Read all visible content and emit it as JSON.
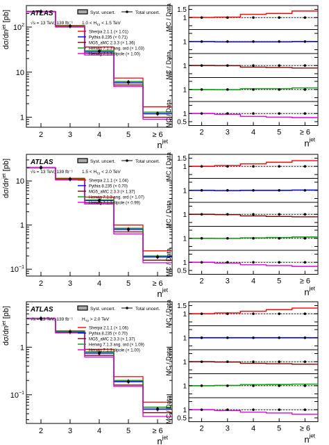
{
  "figure": {
    "atlas_label": "ATLAS",
    "legend": {
      "syst": "Syst. uncert.",
      "total": "Total uncert.",
      "sherpa": "Sherpa 2.1.1",
      "pythia": "Pythia 8.235",
      "mg5": "MG5_aMC 2.3.3",
      "herwig_ang": "Herwig 7.1.3 ang. ord",
      "herwig_dip": "Herwig 7.1.3 dipole"
    },
    "colors": {
      "sherpa": "#ff0000",
      "pythia": "#0000ff",
      "mg5": "#7a0000",
      "herwig_ang": "#00a000",
      "herwig_dip": "#e000e0",
      "data": "#000000",
      "band": "#aaaaaa"
    },
    "xlabel": "n",
    "xlabel_sup": "jet",
    "ylabel": "dσ/dn",
    "ylabel_sup": "jet",
    "ylabel_unit": " [pb]",
    "ratio_ylabel": "MC / Data",
    "ratio_ticks": [
      "1.5",
      "1",
      "0.5"
    ],
    "energy_label": "√s = 13 TeV, 139 fb⁻¹"
  },
  "chart_data": [
    {
      "type": "histogram",
      "region": "1.0 < H_T2 < 1.5 TeV",
      "region_prefix": "1.0 < H",
      "region_sub": "T2",
      "region_suffix": " < 1.5 TeV",
      "categories": [
        "2",
        "3",
        "4",
        "5",
        "≥ 6"
      ],
      "log_y": true,
      "ylim": [
        0.6,
        300
      ],
      "y_ticks": [
        {
          "v": 100,
          "label": "10",
          "sup": "2"
        },
        {
          "v": 10,
          "label": "10",
          "sup": ""
        },
        {
          "v": 1,
          "label": "1",
          "sup": ""
        }
      ],
      "data": [
        220,
        105,
        29,
        6.0,
        1.2
      ],
      "series": [
        {
          "key": "sherpa",
          "name": "Sherpa 2.1.1",
          "scale": "(× 1.01)",
          "values": [
            222,
            108,
            36,
            7.4,
            1.7
          ],
          "ratio": [
            1.01,
            1.03,
            1.2,
            1.25,
            1.4
          ]
        },
        {
          "key": "pythia",
          "name": "Pythia 8.235",
          "scale": "(× 0.71)",
          "values": [
            220,
            103,
            28,
            5.8,
            1.2
          ],
          "ratio": [
            1.0,
            0.98,
            0.98,
            0.98,
            1.0
          ]
        },
        {
          "key": "mg5",
          "name": "MG5_aMC 2.3.3",
          "scale": "(× 1.36)",
          "values": [
            220,
            104,
            26,
            5.2,
            1.0
          ],
          "ratio": [
            1.0,
            0.99,
            0.9,
            0.88,
            0.85
          ]
        },
        {
          "key": "herwig_ang",
          "name": "Herwig 7.1.3 ang. ord",
          "scale": "(× 1.03)",
          "values": [
            220,
            104,
            30,
            6.2,
            1.3
          ],
          "ratio": [
            1.0,
            0.99,
            1.05,
            1.05,
            1.1
          ]
        },
        {
          "key": "herwig_dip",
          "name": "Herwig 7.1.3 dipole",
          "scale": "(× 1.00)",
          "values": [
            220,
            100,
            24,
            4.8,
            0.9
          ],
          "ratio": [
            1.0,
            0.95,
            0.82,
            0.78,
            0.75
          ]
        }
      ]
    },
    {
      "type": "histogram",
      "region": "1.5 < H_T2 < 2.0 TeV",
      "region_prefix": "1.5 < H",
      "region_sub": "T2",
      "region_suffix": " < 2.0 TeV",
      "categories": [
        "2",
        "3",
        "4",
        "5",
        "≥ 6"
      ],
      "log_y": true,
      "ylim": [
        0.07,
        40
      ],
      "y_ticks": [
        {
          "v": 10,
          "label": "10",
          "sup": ""
        },
        {
          "v": 1,
          "label": "1",
          "sup": ""
        },
        {
          "v": 0.1,
          "label": "10",
          "sup": "−1"
        }
      ],
      "data": [
        20,
        11,
        3.6,
        0.8,
        0.19
      ],
      "series": [
        {
          "key": "sherpa",
          "name": "Sherpa 2.1.1",
          "scale": "(× 1.04)",
          "values": [
            20,
            11.5,
            4.3,
            1.0,
            0.26
          ],
          "ratio": [
            1.0,
            1.05,
            1.15,
            1.25,
            1.35
          ]
        },
        {
          "key": "pythia",
          "name": "Pythia 8.235",
          "scale": "(× 0.70)",
          "values": [
            20,
            11,
            3.6,
            0.8,
            0.19
          ],
          "ratio": [
            1.0,
            0.98,
            1.0,
            1.0,
            1.02
          ]
        },
        {
          "key": "mg5",
          "name": "MG5_aMC 2.3.3",
          "scale": "(× 1.37)",
          "values": [
            20,
            10.8,
            3.2,
            0.7,
            0.16
          ],
          "ratio": [
            1.0,
            0.98,
            0.9,
            0.87,
            0.85
          ]
        },
        {
          "key": "herwig_ang",
          "name": "Herwig 7.1.3 ang. ord",
          "scale": "(× 1.07)",
          "values": [
            20,
            11,
            3.7,
            0.85,
            0.2
          ],
          "ratio": [
            1.0,
            0.99,
            1.03,
            1.05,
            1.08
          ]
        },
        {
          "key": "herwig_dip",
          "name": "Herwig 7.1.3 dipole",
          "scale": "(× 0.99)",
          "values": [
            20,
            10.5,
            3.0,
            0.63,
            0.14
          ],
          "ratio": [
            1.0,
            0.95,
            0.85,
            0.8,
            0.75
          ]
        }
      ]
    },
    {
      "type": "histogram",
      "region": "H_T2 > 2.0 TeV",
      "region_prefix": "H",
      "region_sub": "T2",
      "region_suffix": " > 2.0 TeV",
      "categories": [
        "2",
        "3",
        "4",
        "5",
        "≥ 6"
      ],
      "log_y": true,
      "ylim": [
        0.025,
        9
      ],
      "y_ticks": [
        {
          "v": 1,
          "label": "1",
          "sup": ""
        },
        {
          "v": 0.1,
          "label": "10",
          "sup": "−1"
        }
      ],
      "data": [
        4.0,
        2.1,
        0.75,
        0.19,
        0.05
      ],
      "series": [
        {
          "key": "sherpa",
          "name": "Sherpa 2.1.1",
          "scale": "(× 1.06)",
          "values": [
            4.0,
            2.2,
            0.9,
            0.24,
            0.07
          ],
          "ratio": [
            1.0,
            1.05,
            1.15,
            1.25,
            1.35
          ]
        },
        {
          "key": "pythia",
          "name": "Pythia 8.235",
          "scale": "(× 0.70)",
          "values": [
            4.0,
            2.1,
            0.75,
            0.19,
            0.05
          ],
          "ratio": [
            1.0,
            1.0,
            1.0,
            1.0,
            1.0
          ]
        },
        {
          "key": "mg5",
          "name": "MG5_aMC 2.3.3",
          "scale": "(× 1.37)",
          "values": [
            4.0,
            2.0,
            0.67,
            0.16,
            0.042
          ],
          "ratio": [
            1.0,
            0.98,
            0.9,
            0.88,
            0.85
          ]
        },
        {
          "key": "herwig_ang",
          "name": "Herwig 7.1.3 ang. ord",
          "scale": "(× 1.09)",
          "values": [
            4.0,
            2.15,
            0.8,
            0.2,
            0.055
          ],
          "ratio": [
            1.0,
            1.02,
            1.07,
            1.08,
            1.1
          ]
        },
        {
          "key": "herwig_dip",
          "name": "Herwig 7.1.3 dipole",
          "scale": "(× 1.00)",
          "values": [
            4.0,
            2.0,
            0.62,
            0.15,
            0.035
          ],
          "ratio": [
            1.0,
            0.95,
            0.85,
            0.8,
            0.72
          ]
        }
      ]
    }
  ]
}
